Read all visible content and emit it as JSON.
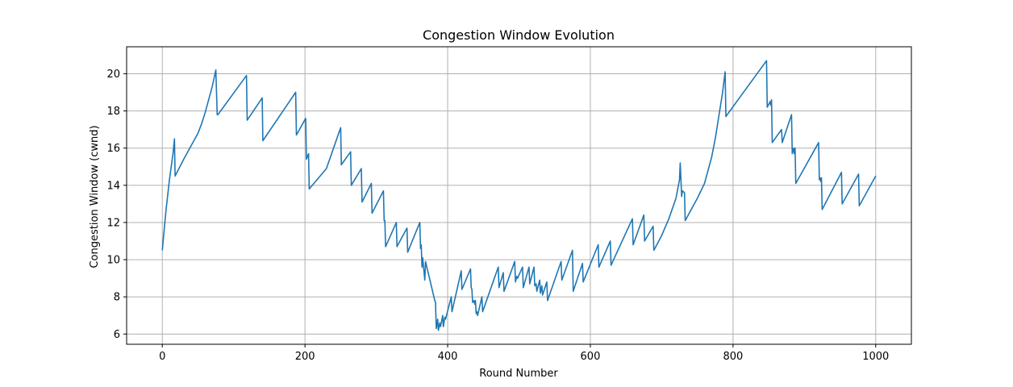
{
  "chart_data": {
    "type": "line",
    "title": "Congestion Window Evolution",
    "xlabel": "Round Number",
    "ylabel": "Congestion Window (cwnd)",
    "xlim": [
      -50,
      1050
    ],
    "ylim": [
      5.45,
      21.45
    ],
    "xticks": [
      0,
      200,
      400,
      600,
      800,
      1000
    ],
    "yticks": [
      6,
      8,
      10,
      12,
      14,
      16,
      18,
      20
    ],
    "grid": true,
    "line_color": "#1f77b4",
    "series": [
      {
        "x": [
          0,
          5,
          10,
          15,
          17,
          18,
          30,
          40,
          50,
          55,
          60,
          65,
          70,
          75,
          77,
          78,
          118,
          119,
          140,
          141,
          187,
          188,
          201,
          202,
          205,
          206,
          230,
          250,
          251,
          264,
          265,
          279,
          280,
          293,
          294,
          310,
          311,
          312,
          313,
          328,
          329,
          343,
          344,
          361,
          362,
          363,
          364,
          365,
          368,
          369,
          382,
          383,
          384,
          386,
          387,
          389,
          390,
          393,
          394,
          396,
          397,
          405,
          406,
          419,
          420,
          432,
          433,
          434,
          435,
          437,
          438,
          439,
          440,
          441,
          442,
          448,
          449,
          471,
          472,
          478,
          479,
          494,
          495,
          497,
          498,
          505,
          506,
          514,
          515,
          521,
          522,
          524,
          525,
          529,
          530,
          532,
          533,
          539,
          540,
          559,
          560,
          575,
          576,
          589,
          590,
          611,
          612,
          628,
          629,
          659,
          660,
          675,
          676,
          688,
          689,
          700,
          710,
          720,
          725,
          726,
          728,
          729,
          732,
          733,
          740,
          750,
          760,
          770,
          775,
          780,
          785,
          789,
          790,
          847,
          848,
          852,
          853,
          854,
          855,
          868,
          869,
          882,
          883,
          885,
          886,
          887,
          888,
          920,
          921,
          922,
          923,
          924,
          925,
          952,
          953,
          976,
          977,
          1000
        ],
        "y": [
          10.5,
          12.6,
          14.3,
          15.7,
          16.5,
          14.5,
          15.4,
          16.1,
          16.8,
          17.3,
          17.9,
          18.6,
          19.3,
          20.2,
          17.8,
          17.8,
          19.9,
          17.5,
          18.7,
          16.4,
          19.0,
          16.7,
          17.6,
          15.4,
          15.7,
          13.8,
          14.9,
          17.1,
          15.1,
          15.8,
          14.0,
          14.9,
          13.1,
          14.1,
          12.5,
          13.7,
          12.1,
          12.1,
          10.7,
          12.0,
          10.7,
          11.7,
          10.4,
          12.0,
          10.6,
          10.8,
          9.6,
          10.1,
          8.9,
          9.9,
          7.8,
          7.7,
          6.3,
          6.8,
          6.2,
          6.6,
          6.4,
          7.0,
          6.4,
          6.9,
          6.8,
          8.0,
          7.2,
          9.4,
          8.4,
          9.5,
          8.5,
          8.4,
          7.7,
          7.8,
          7.6,
          7.8,
          7.1,
          7.2,
          7.0,
          8.0,
          7.2,
          9.6,
          8.5,
          9.3,
          8.3,
          9.9,
          8.8,
          9.1,
          9.0,
          9.6,
          8.5,
          9.6,
          8.7,
          9.6,
          8.6,
          8.7,
          8.3,
          8.9,
          8.2,
          8.6,
          8.1,
          8.8,
          7.8,
          9.9,
          8.9,
          10.5,
          8.3,
          9.8,
          8.8,
          10.8,
          9.6,
          11.0,
          9.7,
          12.2,
          10.8,
          12.4,
          11.0,
          11.8,
          10.5,
          11.3,
          12.2,
          13.3,
          14.3,
          15.2,
          13.4,
          13.7,
          13.6,
          12.1,
          12.6,
          13.3,
          14.1,
          15.5,
          16.5,
          17.7,
          18.9,
          20.1,
          17.7,
          20.7,
          18.2,
          18.5,
          18.3,
          18.6,
          16.3,
          17.0,
          16.3,
          17.8,
          15.7,
          16.0,
          15.7,
          16.0,
          14.1,
          16.3,
          14.3,
          14.4,
          14.2,
          14.4,
          12.7,
          14.7,
          13.0,
          14.6,
          12.9,
          14.5
        ]
      }
    ]
  }
}
